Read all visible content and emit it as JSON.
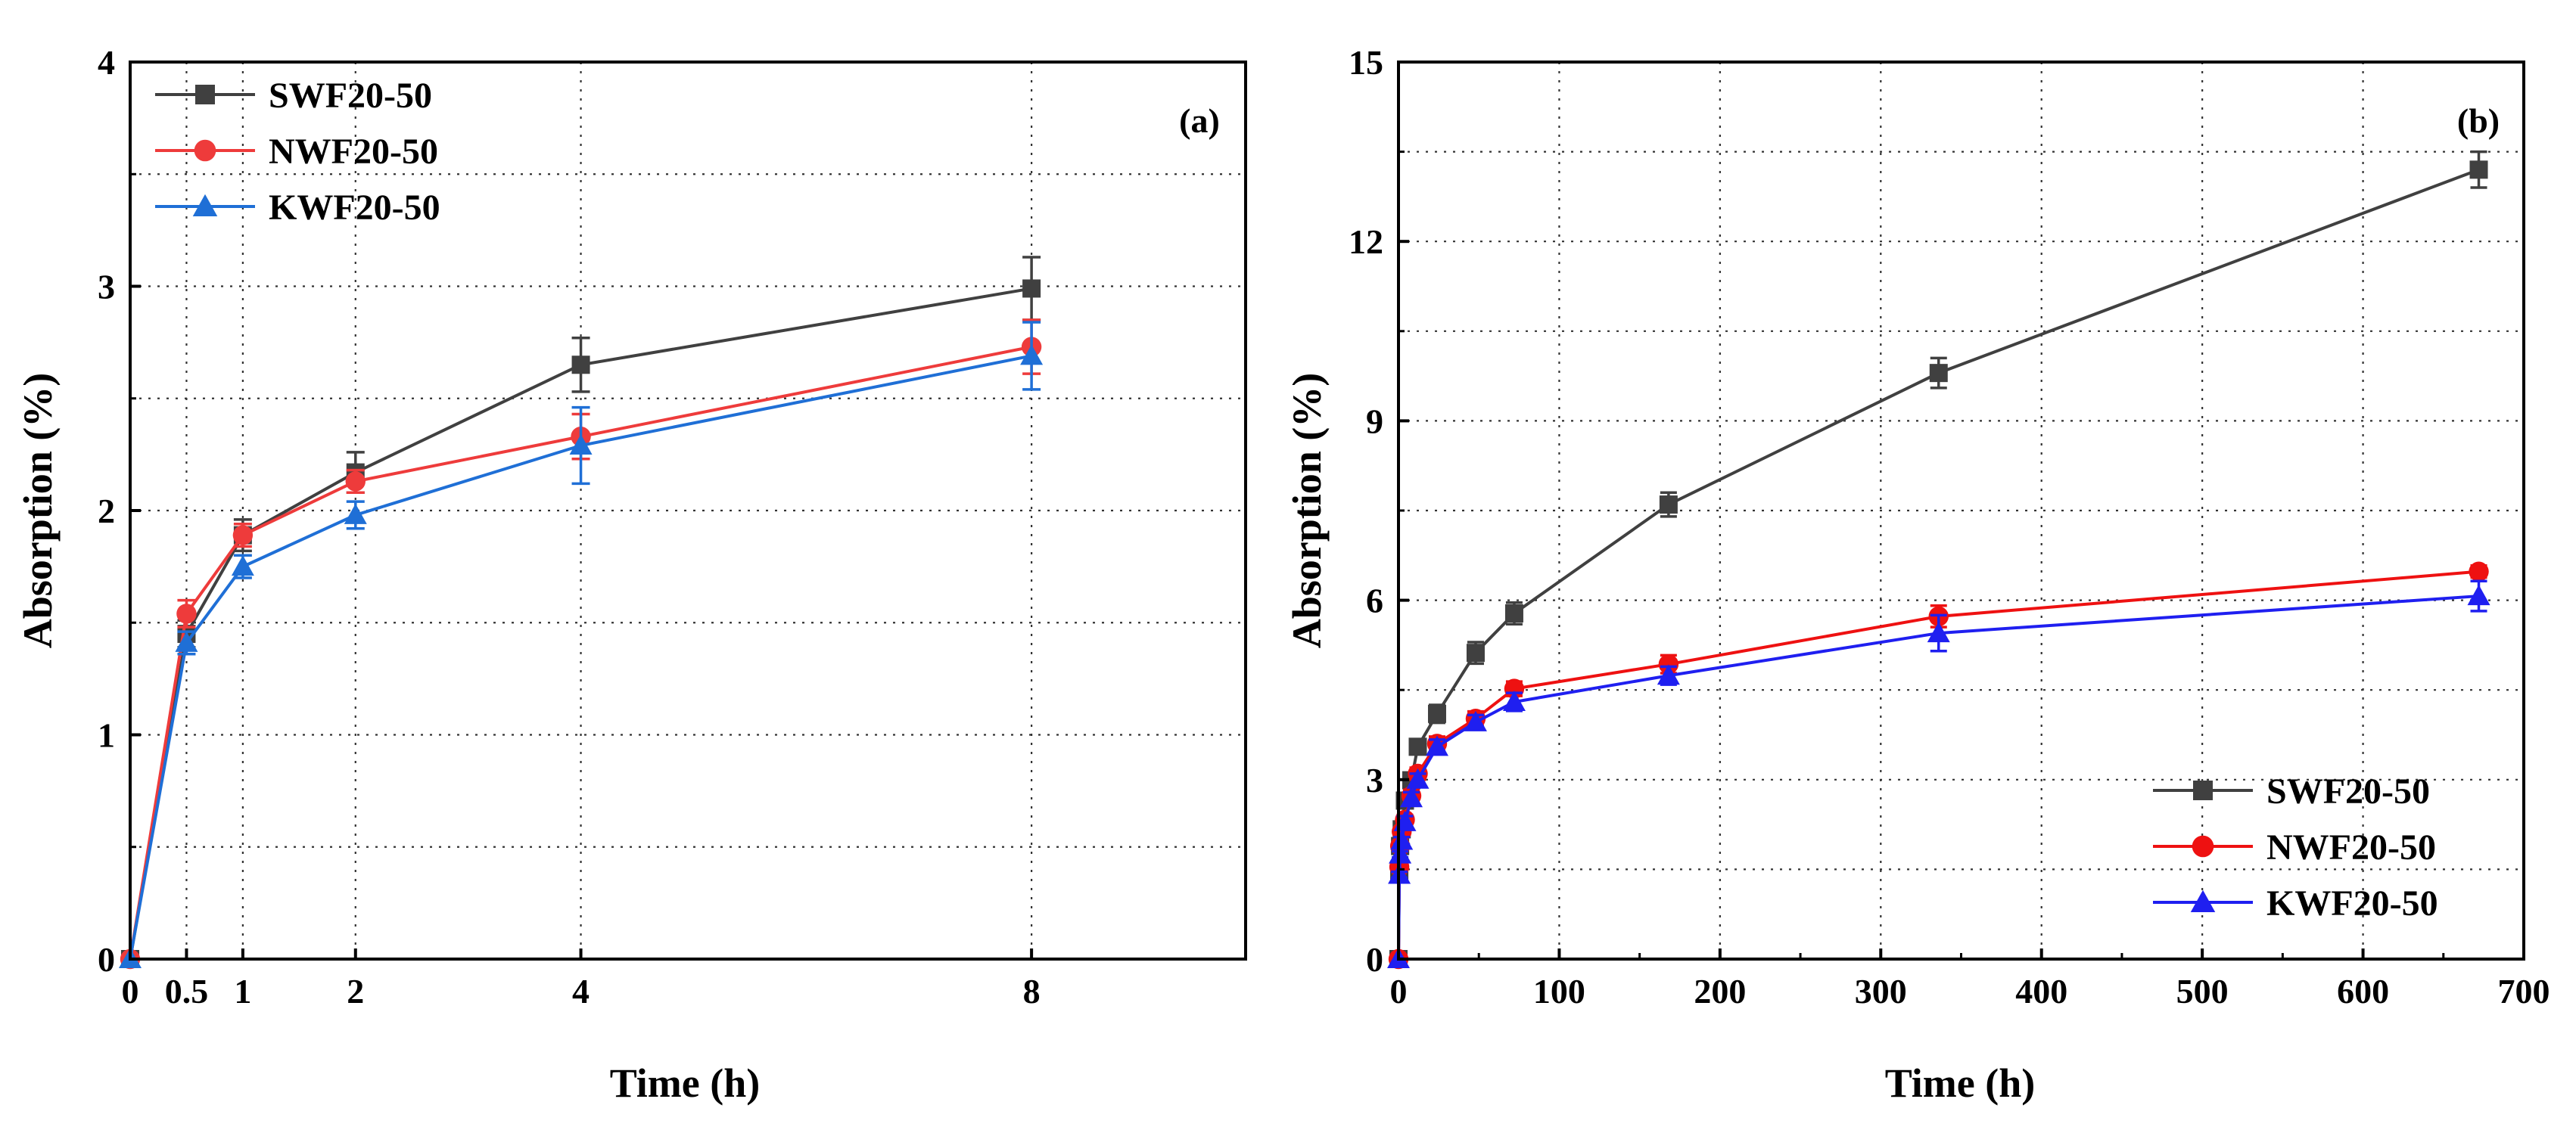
{
  "chart_data": [
    {
      "type": "line",
      "panel_label": "(a)",
      "xlabel": "Time (h)",
      "ylabel": "Absorption (%)",
      "xlim": [
        0,
        9.9
      ],
      "ylim": [
        0,
        4
      ],
      "xticks": [
        0,
        0.5,
        1,
        2,
        4,
        8
      ],
      "xtick_labels": [
        "0",
        "0.5",
        "1",
        "2",
        "4",
        "8"
      ],
      "yticks": [
        0,
        1,
        2,
        3,
        4
      ],
      "ytick_labels": [
        "0",
        "1",
        "2",
        "3",
        "4"
      ],
      "grid": true,
      "legend_position": "top-left",
      "series": [
        {
          "name": "SWF20-50",
          "color": "#404040",
          "marker": "square",
          "x": [
            0,
            0.5,
            1,
            2,
            4,
            8
          ],
          "y": [
            0,
            1.45,
            1.89,
            2.17,
            2.65,
            2.99
          ],
          "err": [
            0,
            0.06,
            0.07,
            0.09,
            0.12,
            0.14
          ]
        },
        {
          "name": "NWF20-50",
          "color": "#ee3b3b",
          "marker": "circle",
          "x": [
            0,
            0.5,
            1,
            2,
            4,
            8
          ],
          "y": [
            0,
            1.54,
            1.89,
            2.13,
            2.33,
            2.73
          ],
          "err": [
            0,
            0.06,
            0.05,
            0.05,
            0.1,
            0.12
          ]
        },
        {
          "name": "KWF20-50",
          "color": "#1f6fd6",
          "marker": "triangle",
          "x": [
            0,
            0.5,
            1,
            2,
            4,
            8
          ],
          "y": [
            0,
            1.41,
            1.75,
            1.98,
            2.29,
            2.69
          ],
          "err": [
            0,
            0.05,
            0.05,
            0.06,
            0.17,
            0.15
          ]
        }
      ]
    },
    {
      "type": "line",
      "panel_label": "(b)",
      "xlabel": "Time (h)",
      "ylabel": "Absorption (%)",
      "xlim": [
        0,
        700
      ],
      "ylim": [
        0,
        15
      ],
      "xticks": [
        0,
        100,
        200,
        300,
        400,
        500,
        600,
        700
      ],
      "xtick_labels": [
        "0",
        "100",
        "200",
        "300",
        "400",
        "500",
        "600",
        "700"
      ],
      "yticks": [
        0,
        3,
        6,
        9,
        12,
        15
      ],
      "ytick_labels": [
        "0",
        "3",
        "6",
        "9",
        "12",
        "15"
      ],
      "grid": true,
      "legend_position": "bottom-right",
      "series": [
        {
          "name": "SWF20-50",
          "color": "#404040",
          "marker": "square",
          "x": [
            0,
            0.5,
            1,
            2,
            4,
            8,
            12,
            24,
            48,
            72,
            168,
            336,
            672
          ],
          "y": [
            0,
            1.45,
            1.89,
            2.17,
            2.65,
            2.99,
            3.55,
            4.1,
            5.12,
            5.78,
            7.6,
            9.8,
            13.2
          ],
          "err": [
            0,
            0.05,
            0.06,
            0.08,
            0.1,
            0.12,
            0.12,
            0.15,
            0.18,
            0.18,
            0.2,
            0.25,
            0.3
          ]
        },
        {
          "name": "NWF20-50",
          "color": "#ee1111",
          "marker": "circle",
          "x": [
            0,
            0.5,
            1,
            2,
            4,
            8,
            12,
            24,
            48,
            72,
            168,
            336,
            672
          ],
          "y": [
            0,
            1.54,
            1.89,
            2.13,
            2.33,
            2.73,
            3.1,
            3.6,
            4.02,
            4.52,
            4.93,
            5.73,
            6.48
          ],
          "err": [
            0,
            0.05,
            0.05,
            0.05,
            0.08,
            0.1,
            0.1,
            0.12,
            0.12,
            0.12,
            0.15,
            0.18,
            0.1
          ]
        },
        {
          "name": "KWF20-50",
          "color": "#1f1ff0",
          "marker": "triangle",
          "x": [
            0,
            0.5,
            1,
            2,
            4,
            8,
            12,
            24,
            48,
            72,
            168,
            336,
            672
          ],
          "y": [
            0,
            1.41,
            1.75,
            1.98,
            2.29,
            2.69,
            3.0,
            3.55,
            3.96,
            4.3,
            4.74,
            5.45,
            6.07
          ],
          "err": [
            0,
            0.05,
            0.05,
            0.06,
            0.1,
            0.1,
            0.1,
            0.12,
            0.12,
            0.15,
            0.15,
            0.3,
            0.25
          ]
        }
      ]
    }
  ]
}
